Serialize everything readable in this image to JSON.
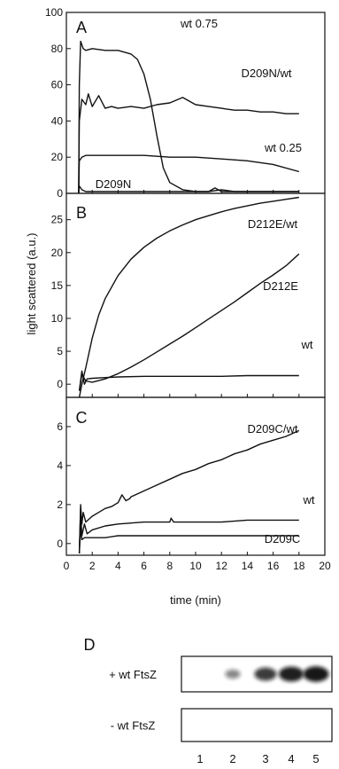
{
  "chart_data": [
    {
      "type": "line",
      "panel": "A",
      "ylabel": "light scattered (a.u.)",
      "xlim": [
        0,
        20
      ],
      "ylim": [
        0,
        100
      ],
      "yticks": [
        0,
        20,
        40,
        60,
        80,
        100
      ],
      "series": [
        {
          "name": "wt 0.75",
          "x": [
            0.95,
            1.0,
            1.1,
            1.3,
            1.5,
            2,
            3,
            4,
            5,
            5.5,
            6,
            6.5,
            7,
            7.5,
            8,
            9,
            10,
            11,
            12,
            13,
            14,
            15,
            16,
            17,
            18
          ],
          "y": [
            0,
            60,
            84,
            80,
            79,
            80,
            79,
            79,
            77,
            74,
            66,
            52,
            32,
            14,
            6,
            2,
            1,
            1,
            2,
            1,
            1,
            1,
            1,
            1,
            1
          ]
        },
        {
          "name": "D209N/wt",
          "x": [
            0.95,
            1.0,
            1.2,
            1.5,
            1.7,
            2,
            2.5,
            3,
            3.5,
            4,
            5,
            6,
            7,
            8,
            9,
            10,
            11,
            12,
            13,
            14,
            15,
            16,
            17,
            18
          ],
          "y": [
            0,
            40,
            52,
            49,
            55,
            48,
            54,
            47,
            48,
            47,
            48,
            47,
            49,
            50,
            53,
            49,
            48,
            47,
            46,
            46,
            45,
            45,
            44,
            44
          ]
        },
        {
          "name": "wt 0.25",
          "x": [
            0.95,
            1.0,
            1.2,
            1.5,
            2,
            3,
            4,
            6,
            8,
            10,
            12,
            14,
            16,
            18
          ],
          "y": [
            0,
            18,
            20,
            21,
            21,
            21,
            21,
            21,
            20,
            20,
            19,
            18,
            16,
            12
          ]
        },
        {
          "name": "D209N",
          "x": [
            0.95,
            1.0,
            1.2,
            1.5,
            2,
            3,
            5,
            8,
            11,
            11.5,
            12,
            13,
            14,
            16,
            18
          ],
          "y": [
            0,
            4,
            2,
            1,
            1,
            1,
            1,
            1,
            1,
            3,
            1,
            1,
            1,
            1,
            1
          ]
        }
      ]
    },
    {
      "type": "line",
      "panel": "B",
      "xlim": [
        0,
        20
      ],
      "ylim": [
        -2,
        29
      ],
      "yticks": [
        0,
        5,
        10,
        15,
        20,
        25
      ],
      "series": [
        {
          "name": "D212E/wt",
          "x": [
            1.0,
            1.2,
            1.5,
            2,
            2.5,
            3,
            4,
            5,
            6,
            7,
            8,
            9,
            10,
            11,
            12,
            13,
            14,
            15,
            16,
            17,
            18
          ],
          "y": [
            -2,
            0,
            2.5,
            7,
            10.5,
            13,
            16.5,
            19,
            20.8,
            22.2,
            23.3,
            24.2,
            25,
            25.6,
            26.2,
            26.7,
            27.1,
            27.5,
            27.8,
            28.1,
            28.4
          ]
        },
        {
          "name": "D212E",
          "x": [
            1.0,
            1.2,
            1.5,
            2,
            3,
            4,
            5,
            6,
            7,
            8,
            9,
            10,
            11,
            12,
            13,
            14,
            15,
            16,
            17,
            18
          ],
          "y": [
            -1,
            1.5,
            0.5,
            0.3,
            0.8,
            1.6,
            2.6,
            3.7,
            4.9,
            6.1,
            7.3,
            8.6,
            9.9,
            11.2,
            12.5,
            13.9,
            15.3,
            16.6,
            18,
            19.8
          ]
        },
        {
          "name": "wt",
          "x": [
            1.0,
            1.2,
            1.4,
            1.6,
            2,
            3,
            4,
            6,
            8,
            10,
            12,
            14,
            16,
            18
          ],
          "y": [
            -1,
            2,
            0,
            0.8,
            0.9,
            1.0,
            1.1,
            1.2,
            1.2,
            1.2,
            1.2,
            1.3,
            1.3,
            1.3
          ]
        }
      ]
    },
    {
      "type": "line",
      "panel": "C",
      "xlabel": "time (min)",
      "xlim": [
        0,
        20
      ],
      "xticks": [
        0,
        2,
        4,
        6,
        8,
        10,
        12,
        14,
        16,
        18,
        20
      ],
      "ylim": [
        -0.6,
        7.5
      ],
      "yticks": [
        0,
        2,
        4,
        6
      ],
      "series": [
        {
          "name": "D209C/wt",
          "x": [
            1.0,
            1.1,
            1.2,
            1.3,
            1.5,
            2,
            2.5,
            3,
            3.5,
            4,
            4.3,
            4.6,
            4.9,
            5,
            6,
            7,
            8,
            9,
            10,
            11,
            12,
            13,
            14,
            15,
            16,
            17,
            18
          ],
          "y": [
            -0.5,
            2.0,
            1.0,
            1.6,
            1.1,
            1.4,
            1.6,
            1.8,
            1.9,
            2.1,
            2.5,
            2.2,
            2.3,
            2.4,
            2.7,
            3.0,
            3.3,
            3.6,
            3.8,
            4.1,
            4.3,
            4.6,
            4.8,
            5.1,
            5.3,
            5.5,
            5.8
          ]
        },
        {
          "name": "wt",
          "x": [
            1.0,
            1.1,
            1.2,
            1.4,
            1.6,
            2,
            3,
            4,
            6,
            8,
            8.1,
            8.3,
            10,
            12,
            14,
            16,
            18
          ],
          "y": [
            -0.5,
            1.8,
            0.4,
            1.0,
            0.5,
            0.7,
            0.9,
            1.0,
            1.1,
            1.1,
            1.3,
            1.1,
            1.1,
            1.1,
            1.2,
            1.2,
            1.2
          ]
        },
        {
          "name": "D209C",
          "x": [
            1.0,
            1.1,
            1.2,
            1.4,
            2,
            3,
            4,
            6,
            8,
            10,
            12,
            14,
            16,
            18
          ],
          "y": [
            -0.5,
            0.8,
            0.2,
            0.3,
            0.3,
            0.3,
            0.4,
            0.4,
            0.4,
            0.4,
            0.4,
            0.4,
            0.4,
            0.4
          ]
        }
      ]
    },
    {
      "type": "gel",
      "panel": "D",
      "rows": [
        "+ wt FtsZ",
        "- wt FtsZ"
      ],
      "lanes": [
        "1",
        "2",
        "3",
        "4",
        "5"
      ],
      "band_intensity": {
        "+ wt FtsZ": [
          0.0,
          0.35,
          0.75,
          0.9,
          0.95
        ],
        "- wt FtsZ": [
          0,
          0,
          0,
          0,
          0
        ]
      }
    }
  ],
  "panel_labels": [
    "A",
    "B",
    "C",
    "D"
  ],
  "colors": {
    "ink": "#111111",
    "background": "#ffffff"
  }
}
